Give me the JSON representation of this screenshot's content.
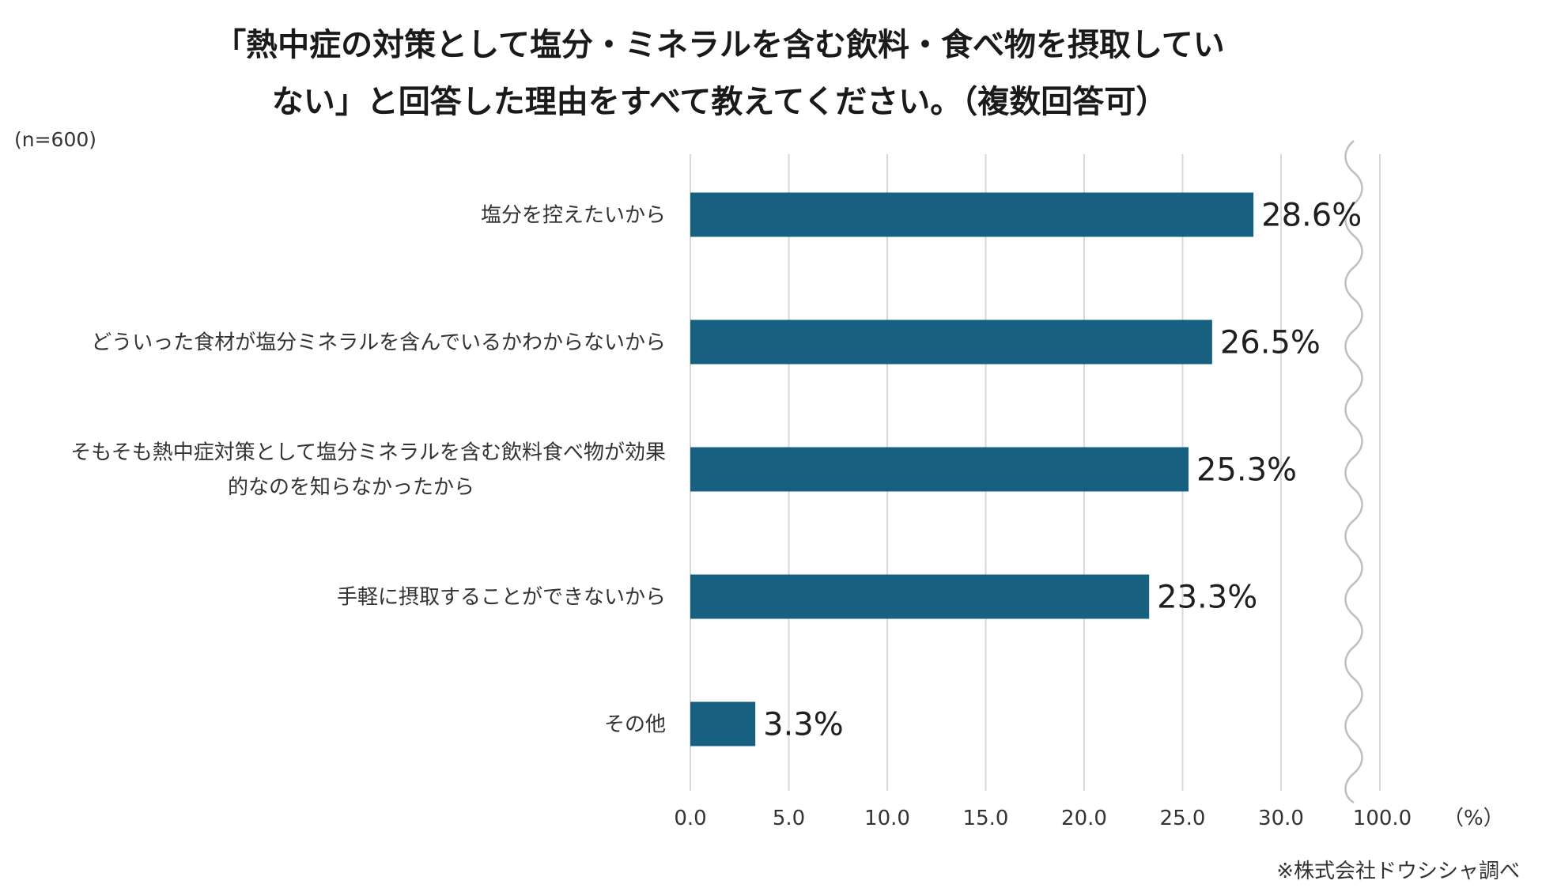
{
  "chart_data": {
    "type": "bar",
    "orientation": "horizontal",
    "title_lines": [
      "「熱中症の対策として塩分・ミネラルを含む飲料・食べ物を摂取してい",
      "ない」と回答した理由をすべて教えてください。（複数回答可）"
    ],
    "sample_size": "(n=600)",
    "categories": [
      [
        "塩分を控えたいから"
      ],
      [
        "どういった食材が塩分ミネラルを含んでいるかわからないから"
      ],
      [
        "そもそも熱中症対策として塩分ミネラルを含む飲料食べ物が効果",
        "的なのを知らなかったから"
      ],
      [
        "手軽に摂取することができないから"
      ],
      [
        "その他"
      ]
    ],
    "values": [
      28.6,
      26.5,
      25.3,
      23.3,
      3.3
    ],
    "value_labels": [
      "28.6%",
      "26.5%",
      "25.3%",
      "23.3%",
      "3.3%"
    ],
    "x_ticks": [
      "0.0",
      "5.0",
      "10.0",
      "15.0",
      "20.0",
      "25.0",
      "30.0"
    ],
    "x_tick_values": [
      0,
      5,
      10,
      15,
      20,
      25,
      30
    ],
    "x_max_tick": "100.0",
    "x_unit": "（%）",
    "xlim": [
      0,
      35
    ],
    "axis_break": true,
    "source": "※株式会社ドウシシャ調べ",
    "bar_color": "#17607f",
    "grid": true
  }
}
